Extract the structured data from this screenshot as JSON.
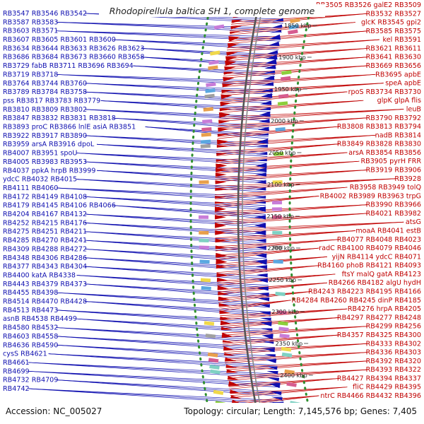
{
  "title": "Rhodopirellula baltica SH 1, complete genome",
  "footer": {
    "accession": "Accession: NC_005027",
    "stats": "Topology: circular; Length: 7,145,576 bp; Genes: 7,405"
  },
  "colors": {
    "forward": "#c00000",
    "reverse": "#1010b0",
    "backbone": "#555555",
    "dots": "#2f8f2f"
  },
  "kbp_ticks": [
    "1850 kbp",
    "1900 kbp",
    "1950 kbp",
    "2000 kbp",
    "2050 kbp",
    "2100 kbp",
    "2150 kbp",
    "2200 kbp",
    "2250 kbp",
    "2300 kbp",
    "2350 kbp",
    "2400 kbp"
  ],
  "left_labels": [
    "RB3547 RB3546 RB3542",
    "RB3587 RB3583",
    "RB3603 RB3571",
    "RB3607 RB3605 RB3601 RB3600",
    "RB3634 RB3644 RB3633 RB3626 RB3623",
    "RB3686 RB3684 RB3673 RB3660 RB3658",
    "RB3729 fabB RB3711 RB3696 RB3694",
    "RB3719 RB3718",
    "RB3764 RB3744 RB3760",
    "RB3789 RB3784 RB3758",
    "pss RB3817 RB3783 RB3779",
    "RB3810 RB3809 RB3802",
    "RB3847 RB3832 RB3831 RB3818",
    "RB3893 proC RB3866 lnlE asiA RB3851",
    "RB3922 RB3917 RB3890",
    "RB3959 arsA RB3916 dpoL",
    "RB4007 RB3951 spoU",
    "RB4005 RB3983 RB3953",
    "RB4037 ppkA hrpB RB3999",
    "ydcC RB4032 RB4015",
    "RB4111 RB4060",
    "RB4172 RB4149 RB4108",
    "RB4179 RB4145 RB4106 RB4066",
    "RB4204 RB4167 RB4132",
    "RB4252 RB4215 RB4176",
    "RB4275 RB4251 RB4211",
    "RB4285 RB4270 RB4241",
    "RB4309 RB4288 RB4272",
    "RB4348 RB4306 RB4286",
    "RB4377 RB4343 RB4304",
    "RB4400 katA RB4338",
    "RB4443 RB4379 RB4373",
    "RB4455 RB4398",
    "RB4514 RB4470 RB4428",
    "RB4513 RB4473",
    "asnB RB4538 RB4499",
    "RB4580 RB4532",
    "RB4603 RB4558",
    "RB4636 RB4590",
    "cysS RB4621",
    "RB4661",
    "RB4699",
    "RB4732 RB4709",
    "RB4742"
  ],
  "right_labels": [
    "RB3505 RB3526 galE2 RB3509",
    "RB3532 RB3527",
    "glcK RB3545 gpi2",
    "RB3585 RB3575",
    "kel RB3591",
    "RB3621 RB3611",
    "RB3641 RB3630",
    "RB3669 RB3656",
    "RB3695 apbE",
    "speA apbE",
    "rpoS RB3734 RB3730",
    "glpK glpA flis",
    "leuB",
    "RB3790 RB3792",
    "RB3808 RB3813 RB3794",
    "nadB RB3814",
    "RB3849 RB3828 RB3830",
    "arsA RB3854 RB3856",
    "RB3905 pyrH FRR",
    "RB3919 RB3906",
    "RB3928",
    "RB3958 RB3949 tolQ",
    "RB4002 RB3989 RB3963 trpG",
    "RB3990 RB3966",
    "RB4021 RB3982",
    "atsG",
    "moaA RB4041 estB",
    "RB4077 RB4048 RB4023",
    "radC RB4100 RB4079 RB4046",
    "yijN RB4114 ydcC RB4071",
    "RB4160 phoB RB4121 RB4093",
    "ftsY malQ gatA RB4123",
    "RB4266 RB4182 algU hydH",
    "RB4243 RB4223 RB4195 RB4166",
    "RB4284 RB4260 RB4245 dinP RB4185",
    "RB4276 hrpA RB4205",
    "RB4297 RB4277 RB4248",
    "RB4299 RB4256",
    "RB4357 RB4325 RB4300",
    "RB4333 RB4302",
    "RB4336 RB4303",
    "RB4392 RB4320",
    "RB4393 RB4322",
    "RB4427 RB4394 RB4337",
    "fliC RB4429 RB4395",
    "ntrC RB4466 RB4432 RB4396"
  ]
}
